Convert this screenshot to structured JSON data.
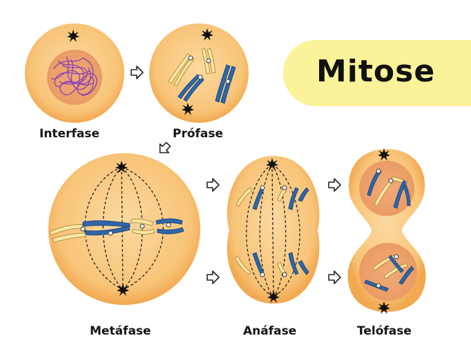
{
  "title": "Mitose",
  "phases": [
    {
      "id": "interfase",
      "label": "Interfase"
    },
    {
      "id": "profase",
      "label": "Prófase"
    },
    {
      "id": "metafase",
      "label": "Metáfase"
    },
    {
      "id": "anafase",
      "label": "Anáfase"
    },
    {
      "id": "telofase",
      "label": "Telófase"
    }
  ],
  "colors": {
    "cell_fill": "#f9c57a",
    "cell_edge": "#f2a84e",
    "nucleus_fill": "#f0a06a",
    "chromosome_light": "#f7e6a5",
    "chromosome_dark": "#2f66a8",
    "chromatin": "#8a3fb8",
    "title_bg": "#fbf29a"
  }
}
